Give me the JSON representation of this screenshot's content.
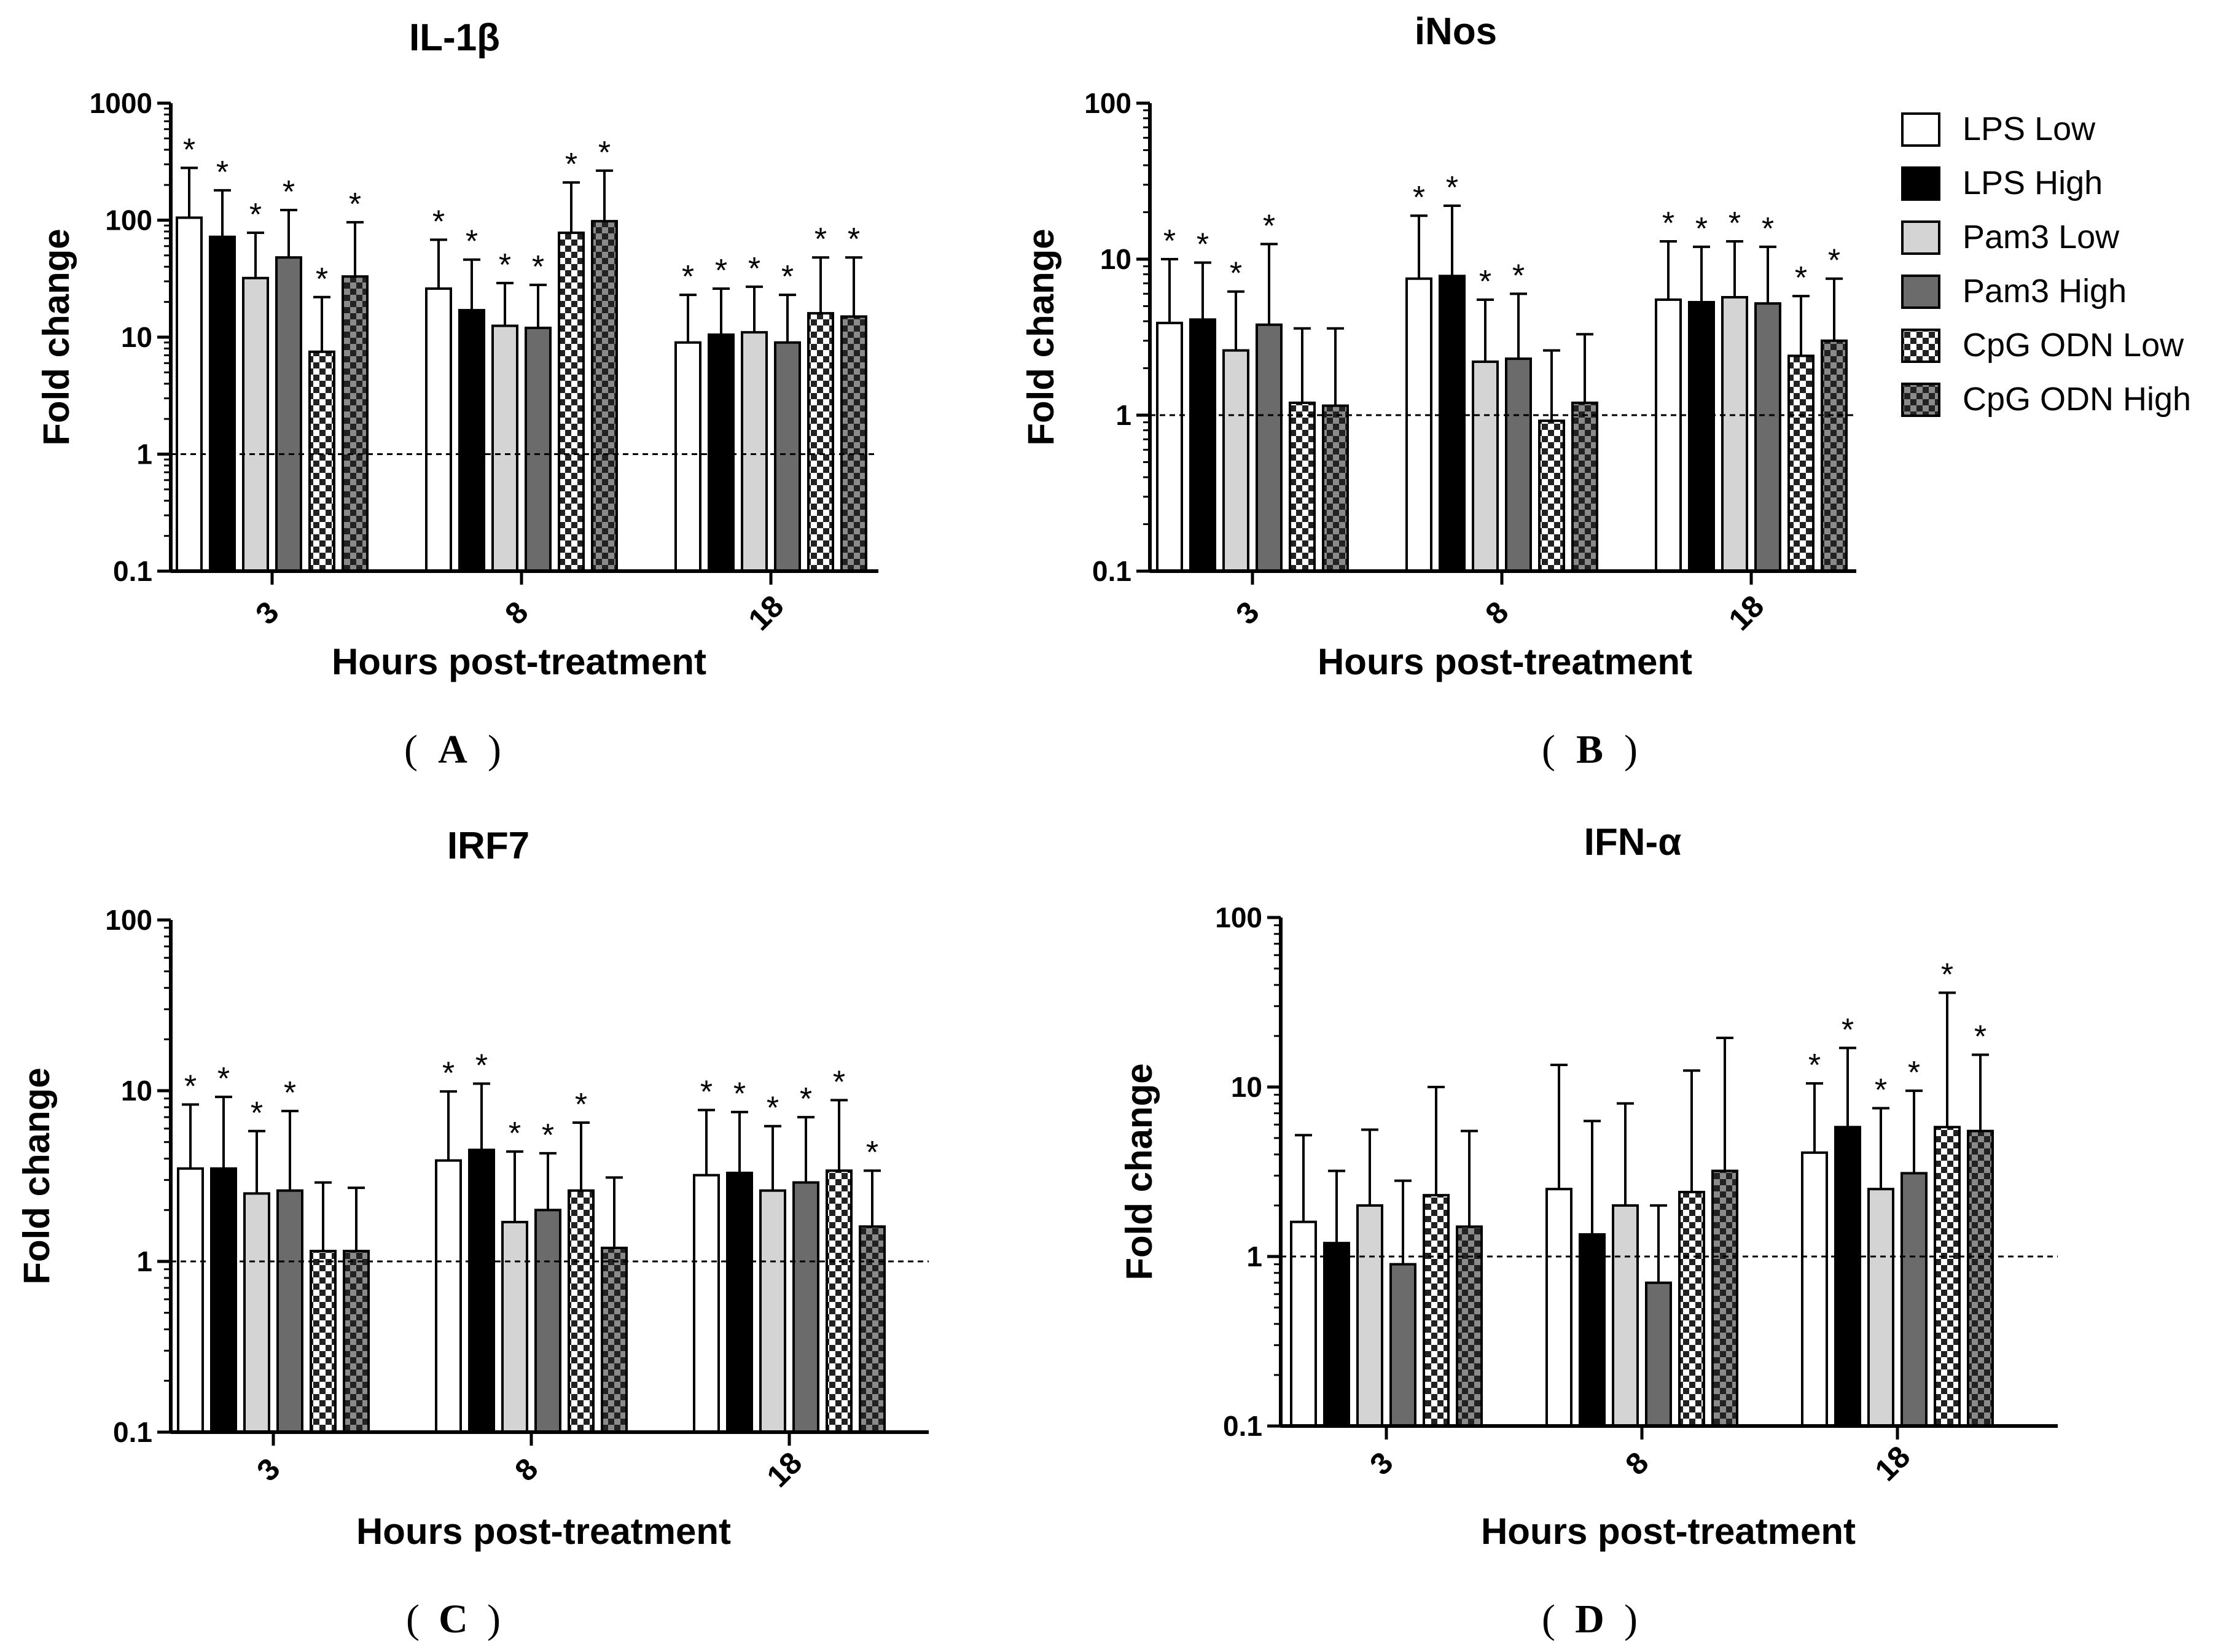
{
  "legend": {
    "entries": [
      {
        "label": "LPS Low",
        "pattern": "white"
      },
      {
        "label": "LPS High",
        "pattern": "black"
      },
      {
        "label": "Pam3 Low",
        "pattern": "lightgray"
      },
      {
        "label": "Pam3 High",
        "pattern": "darkgray"
      },
      {
        "label": "CpG ODN Low",
        "pattern": "checker-light"
      },
      {
        "label": "CpG ODN High",
        "pattern": "checker-dark"
      }
    ]
  },
  "chart_data": [
    {
      "type": "bar",
      "panel": "A",
      "title": "IL-1β",
      "xlabel": "Hours post-treatment",
      "ylabel": "Fold change",
      "yscale": "log",
      "ylim": [
        0.1,
        1000
      ],
      "yticks": [
        "0.1",
        "1",
        "10",
        "100",
        "1000"
      ],
      "reference_line": 1,
      "categories": [
        "3",
        "8",
        "18"
      ],
      "series": [
        {
          "name": "LPS Low",
          "values": [
            105,
            26,
            9
          ],
          "errors": [
            280,
            68,
            23
          ],
          "significant": [
            true,
            true,
            true
          ]
        },
        {
          "name": "LPS High",
          "values": [
            72,
            17,
            10.5
          ],
          "errors": [
            180,
            46,
            26
          ],
          "significant": [
            true,
            true,
            true
          ]
        },
        {
          "name": "Pam3 Low",
          "values": [
            32,
            12.5,
            11
          ],
          "errors": [
            78,
            29,
            27
          ],
          "significant": [
            true,
            true,
            true
          ]
        },
        {
          "name": "Pam3 High",
          "values": [
            48,
            12,
            9
          ],
          "errors": [
            122,
            28,
            23
          ],
          "significant": [
            true,
            true,
            true
          ]
        },
        {
          "name": "CpG ODN Low",
          "values": [
            7.5,
            78,
            16
          ],
          "errors": [
            22,
            210,
            48
          ],
          "significant": [
            true,
            true,
            true
          ]
        },
        {
          "name": "CpG ODN High",
          "values": [
            33,
            98,
            15
          ],
          "errors": [
            96,
            265,
            48
          ],
          "significant": [
            true,
            true,
            true
          ]
        }
      ]
    },
    {
      "type": "bar",
      "panel": "B",
      "title": "iNos",
      "xlabel": "Hours post-treatment",
      "ylabel": "Fold change",
      "yscale": "log",
      "ylim": [
        0.1,
        100
      ],
      "yticks": [
        "0.1",
        "1",
        "10",
        "100"
      ],
      "reference_line": 1,
      "categories": [
        "3",
        "8",
        "18"
      ],
      "series": [
        {
          "name": "LPS Low",
          "values": [
            3.9,
            7.5,
            5.5
          ],
          "errors": [
            10,
            19,
            13
          ],
          "significant": [
            true,
            true,
            true
          ]
        },
        {
          "name": "LPS High",
          "values": [
            4.1,
            7.8,
            5.3
          ],
          "errors": [
            9.5,
            22,
            12
          ],
          "significant": [
            true,
            true,
            true
          ]
        },
        {
          "name": "Pam3 Low",
          "values": [
            2.6,
            2.2,
            5.7
          ],
          "errors": [
            6.2,
            5.5,
            13
          ],
          "significant": [
            true,
            true,
            true
          ]
        },
        {
          "name": "Pam3 High",
          "values": [
            3.8,
            2.3,
            5.2
          ],
          "errors": [
            12.5,
            6,
            12
          ],
          "significant": [
            true,
            true,
            true
          ]
        },
        {
          "name": "CpG ODN Low",
          "values": [
            1.2,
            0.92,
            2.4
          ],
          "errors": [
            3.6,
            2.6,
            5.8
          ],
          "significant": [
            false,
            false,
            true
          ]
        },
        {
          "name": "CpG ODN High",
          "values": [
            1.15,
            1.2,
            3
          ],
          "errors": [
            3.6,
            3.3,
            7.5
          ],
          "significant": [
            false,
            false,
            true
          ]
        }
      ]
    },
    {
      "type": "bar",
      "panel": "C",
      "title": "IRF7",
      "xlabel": "Hours post-treatment",
      "ylabel": "Fold change",
      "yscale": "log",
      "ylim": [
        0.1,
        100
      ],
      "yticks": [
        "0.1",
        "1",
        "10",
        "100"
      ],
      "reference_line": 1,
      "categories": [
        "3",
        "8",
        "18"
      ],
      "series": [
        {
          "name": "LPS Low",
          "values": [
            3.5,
            3.9,
            3.2
          ],
          "errors": [
            8.3,
            9.9,
            7.7
          ],
          "significant": [
            true,
            true,
            true
          ]
        },
        {
          "name": "LPS High",
          "values": [
            3.5,
            4.5,
            3.3
          ],
          "errors": [
            9.2,
            11,
            7.5
          ],
          "significant": [
            true,
            true,
            true
          ]
        },
        {
          "name": "Pam3 Low",
          "values": [
            2.5,
            1.7,
            2.6
          ],
          "errors": [
            5.8,
            4.4,
            6.2
          ],
          "significant": [
            true,
            true,
            true
          ]
        },
        {
          "name": "Pam3 High",
          "values": [
            2.6,
            2,
            2.9
          ],
          "errors": [
            7.6,
            4.3,
            7
          ],
          "significant": [
            true,
            true,
            true
          ]
        },
        {
          "name": "CpG ODN Low",
          "values": [
            1.15,
            2.6,
            3.4
          ],
          "errors": [
            2.9,
            6.5,
            8.8
          ],
          "significant": [
            false,
            true,
            true
          ]
        },
        {
          "name": "CpG ODN High",
          "values": [
            1.15,
            1.2,
            1.6
          ],
          "errors": [
            2.7,
            3.1,
            3.4
          ],
          "significant": [
            false,
            false,
            true
          ]
        }
      ]
    },
    {
      "type": "bar",
      "panel": "D",
      "title": "IFN-α",
      "xlabel": "Hours post-treatment",
      "ylabel": "Fold change",
      "yscale": "log",
      "ylim": [
        0.1,
        100
      ],
      "yticks": [
        "0.1",
        "1",
        "10",
        "100"
      ],
      "reference_line": 1,
      "categories": [
        "3",
        "8",
        "18"
      ],
      "series": [
        {
          "name": "LPS Low",
          "values": [
            1.6,
            2.5,
            4.1
          ],
          "errors": [
            5.2,
            13.5,
            10.5
          ],
          "significant": [
            false,
            false,
            true
          ]
        },
        {
          "name": "LPS High",
          "values": [
            1.2,
            1.35,
            5.8
          ],
          "errors": [
            3.2,
            6.3,
            17
          ],
          "significant": [
            false,
            false,
            true
          ]
        },
        {
          "name": "Pam3 Low",
          "values": [
            2,
            2,
            2.5
          ],
          "errors": [
            5.6,
            8,
            7.5
          ],
          "significant": [
            false,
            false,
            true
          ]
        },
        {
          "name": "Pam3 High",
          "values": [
            0.9,
            0.7,
            3.1
          ],
          "errors": [
            2.8,
            2,
            9.5
          ],
          "significant": [
            false,
            false,
            true
          ]
        },
        {
          "name": "CpG ODN Low",
          "values": [
            2.3,
            2.4,
            5.8
          ],
          "errors": [
            10,
            12.5,
            36
          ],
          "significant": [
            false,
            false,
            true
          ]
        },
        {
          "name": "CpG ODN High",
          "values": [
            1.5,
            3.2,
            5.5
          ],
          "errors": [
            5.5,
            19.5,
            15.5
          ],
          "significant": [
            false,
            false,
            true
          ]
        }
      ]
    }
  ],
  "panel_labels": [
    "A",
    "B",
    "C",
    "D"
  ],
  "significance_marker": "*"
}
